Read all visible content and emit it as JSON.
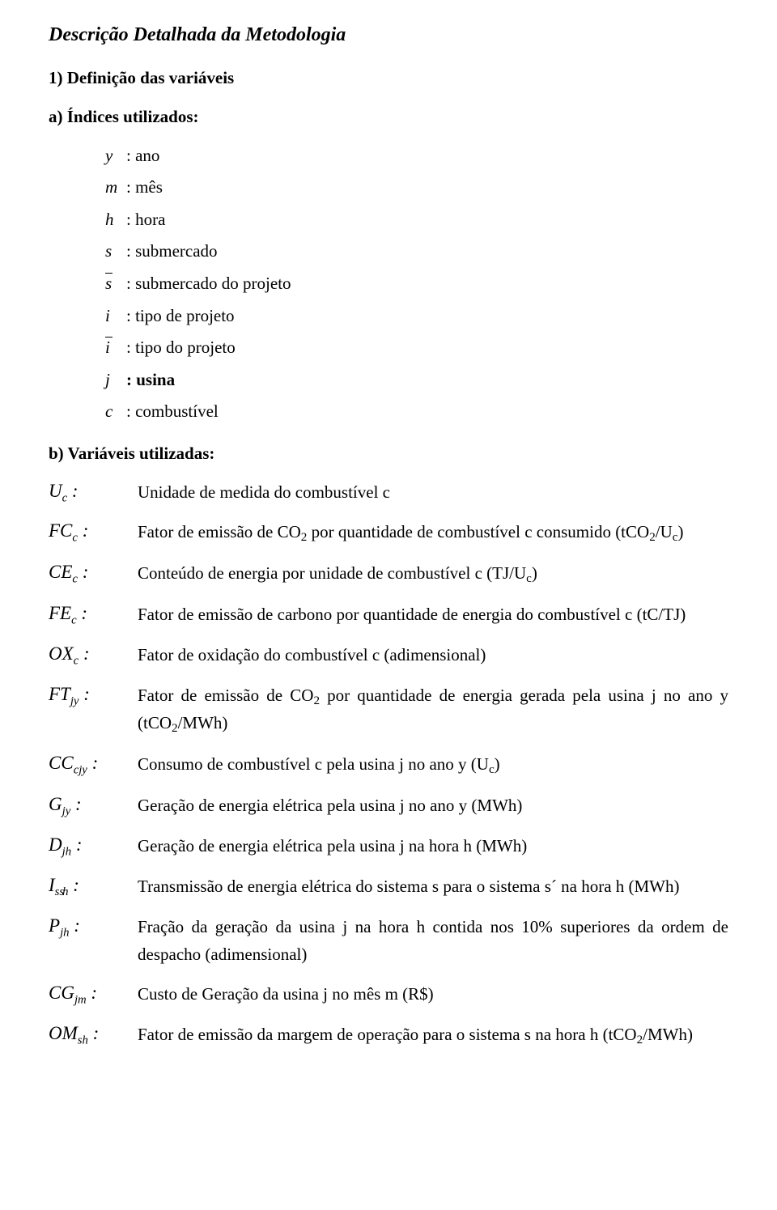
{
  "title": "Descrição Detalhada da Metodologia",
  "section1": "1) Definição das variáveis",
  "sectionA": "a) Índices utilizados:",
  "sectionB": "b) Variáveis utilizadas:",
  "idx": {
    "y": {
      "s": "y",
      "d": " : ano"
    },
    "m": {
      "s": "m",
      "d": ": mês"
    },
    "h": {
      "s": "h",
      "d": " : hora"
    },
    "s": {
      "s": "s",
      "d": " : submercado"
    },
    "sbar": {
      "s": "s",
      "d": " : submercado do projeto"
    },
    "i": {
      "s": "i",
      "d": " : tipo de projeto"
    },
    "ibar": {
      "s": "i",
      "d": " : tipo do projeto"
    },
    "j": {
      "s": "j",
      "d": " : usina"
    },
    "c": {
      "s": "c",
      "d": " : combustível"
    }
  },
  "vars": {
    "Uc": {
      "main": "U",
      "sub": "c",
      "desc": "Unidade de medida do combustível c"
    },
    "FCc": {
      "main": "FC",
      "sub": "c",
      "desc_a": "Fator de emissão de CO",
      "desc_b": " por quantidade de combustível c consumido (tCO",
      "desc_c": "/U",
      "desc_d": ")"
    },
    "CEc": {
      "main": "CE",
      "sub": "c",
      "desc_a": "Conteúdo de energia por unidade de combustível c (TJ/U",
      "desc_b": ")"
    },
    "FEc": {
      "main": "FE",
      "sub": "c",
      "desc": "Fator de emissão de carbono por quantidade de energia do combustível c (tC/TJ)"
    },
    "OXc": {
      "main": "OX",
      "sub": "c",
      "desc": "Fator de oxidação do combustível c (adimensional)"
    },
    "FTjy": {
      "main": "FT",
      "sub": "jy",
      "desc_a": "Fator de emissão de CO",
      "desc_b": " por quantidade de energia gerada pela usina j no ano y (tCO",
      "desc_c": "/MWh)"
    },
    "CCcjy": {
      "main": "CC",
      "sub": "cjy",
      "desc_a": "Consumo de combustível c pela usina j no ano y (U",
      "desc_b": ")"
    },
    "Gjy": {
      "main": "G",
      "sub": "jy",
      "desc": "Geração de energia elétrica pela usina j no ano y (MWh)"
    },
    "Djh": {
      "main": "D",
      "sub": "jh",
      "desc": "Geração de energia elétrica pela usina j na hora h (MWh)"
    },
    "Issh": {
      "main": "I",
      "sub1": "ss",
      "sub2": "h",
      "desc": "Transmissão de energia elétrica do sistema s para o sistema s´ na hora h (MWh)"
    },
    "Pjh": {
      "main": "P",
      "sub": "jh",
      "desc": "Fração da geração da usina j na hora h contida nos 10% superiores da ordem de despacho (adimensional)"
    },
    "CGjm": {
      "main": "CG",
      "sub": "jm",
      "desc": "Custo de Geração da usina j no mês m (R$)"
    },
    "OMsh": {
      "main": "OM",
      "sub": "sh",
      "desc_a": "Fator de emissão da margem de operação para o sistema s na hora h (tCO",
      "desc_b": "/MWh)"
    }
  },
  "two": "2",
  "c": "c"
}
